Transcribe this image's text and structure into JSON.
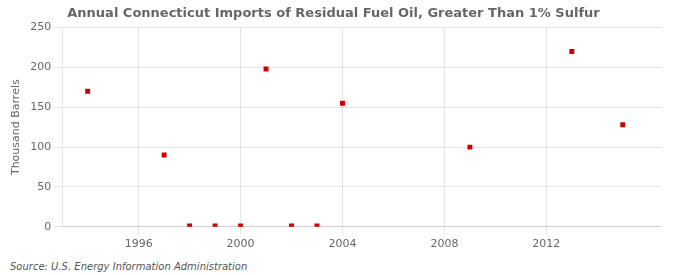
{
  "chart_data": {
    "type": "scatter",
    "title": "Annual Connecticut Imports of Residual Fuel Oil, Greater Than 1% Sulfur",
    "ylabel": "Thousand Barrels",
    "annotations": [
      "Source: U.S. Energy Information Administration"
    ],
    "x": [
      1994,
      1997,
      1998,
      1999,
      2000,
      2001,
      2002,
      2003,
      2004,
      2009,
      2013,
      2015
    ],
    "values": [
      170,
      90,
      1,
      1,
      1,
      198,
      1,
      1,
      155,
      100,
      220,
      128
    ],
    "color": "#cc0000",
    "marker": "square",
    "xlim": [
      1993.0,
      2016.5
    ],
    "xticks": [
      1996,
      2000,
      2004,
      2008,
      2012
    ],
    "ylim": [
      0,
      250
    ],
    "yticks": [
      0,
      50,
      100,
      150,
      200,
      250
    ],
    "grid": true
  }
}
